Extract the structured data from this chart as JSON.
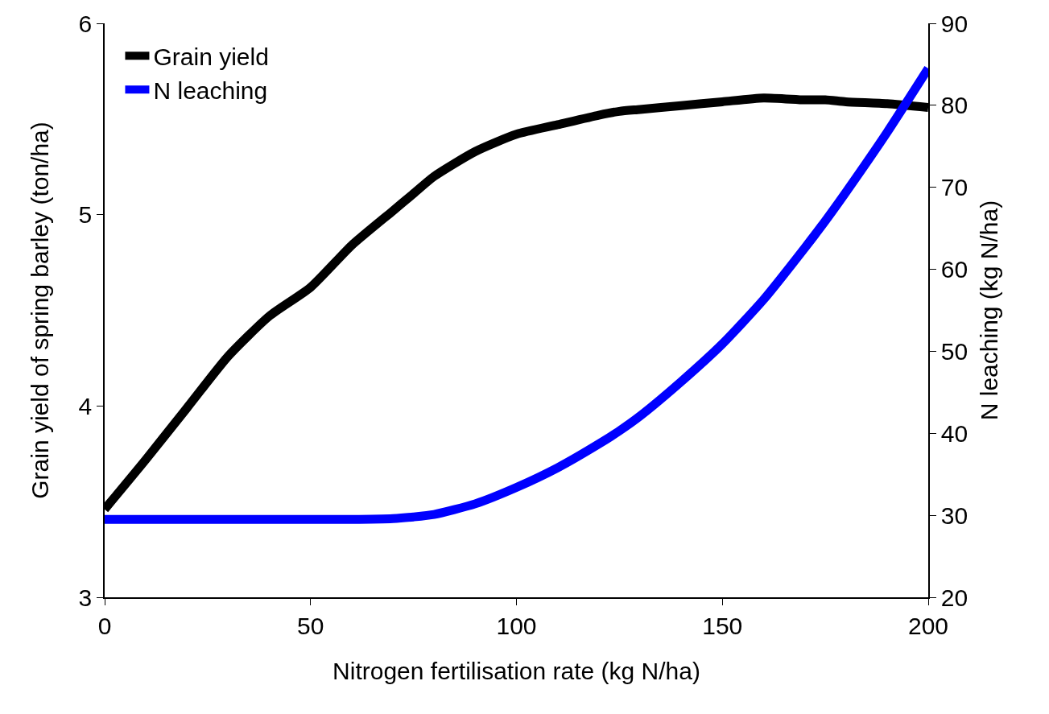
{
  "chart_data": {
    "type": "line",
    "xlabel": "Nitrogen fertilisation rate (kg N/ha)",
    "ylabel": "Grain yield of spring barley (ton/ha)",
    "y2label": "N leaching (kg N/ha)",
    "x": [
      0,
      10,
      20,
      30,
      40,
      50,
      60,
      70,
      75,
      80,
      90,
      100,
      110,
      120,
      125,
      130,
      140,
      150,
      160,
      170,
      175,
      180,
      190,
      200
    ],
    "series": [
      {
        "name": "Grain yield",
        "color": "#000000",
        "values": [
          3.46,
          3.72,
          3.99,
          4.26,
          4.47,
          4.62,
          4.84,
          5.02,
          5.11,
          5.2,
          5.33,
          5.42,
          5.47,
          5.52,
          5.54,
          5.55,
          5.57,
          5.59,
          5.61,
          5.6,
          5.6,
          5.59,
          5.58,
          5.56
        ]
      },
      {
        "name": "N leaching",
        "color": "#0000ff",
        "axis": "y2",
        "values": [
          29.5,
          29.5,
          29.5,
          29.5,
          29.5,
          29.5,
          29.5,
          29.6,
          29.8,
          30.1,
          31.4,
          33.4,
          35.8,
          38.7,
          40.3,
          42.1,
          46.3,
          50.9,
          56.3,
          62.6,
          65.9,
          69.4,
          76.7,
          84.5
        ]
      }
    ],
    "xlim": [
      0,
      200
    ],
    "xticks": [
      0,
      50,
      100,
      150,
      200
    ],
    "ylim": [
      3,
      6
    ],
    "yticks": [
      3,
      4,
      5,
      6
    ],
    "y2lim": [
      20,
      90
    ],
    "y2ticks": [
      20,
      30,
      40,
      50,
      60,
      70,
      80,
      90
    ],
    "grid": false,
    "legend": "top left",
    "marker": "none",
    "line_style": "solid"
  }
}
